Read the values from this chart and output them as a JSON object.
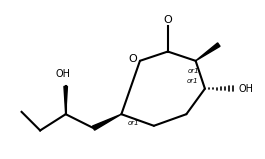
{
  "background": "#ffffff",
  "line_color": "#000000",
  "line_width": 1.5,
  "font_size": 7
}
